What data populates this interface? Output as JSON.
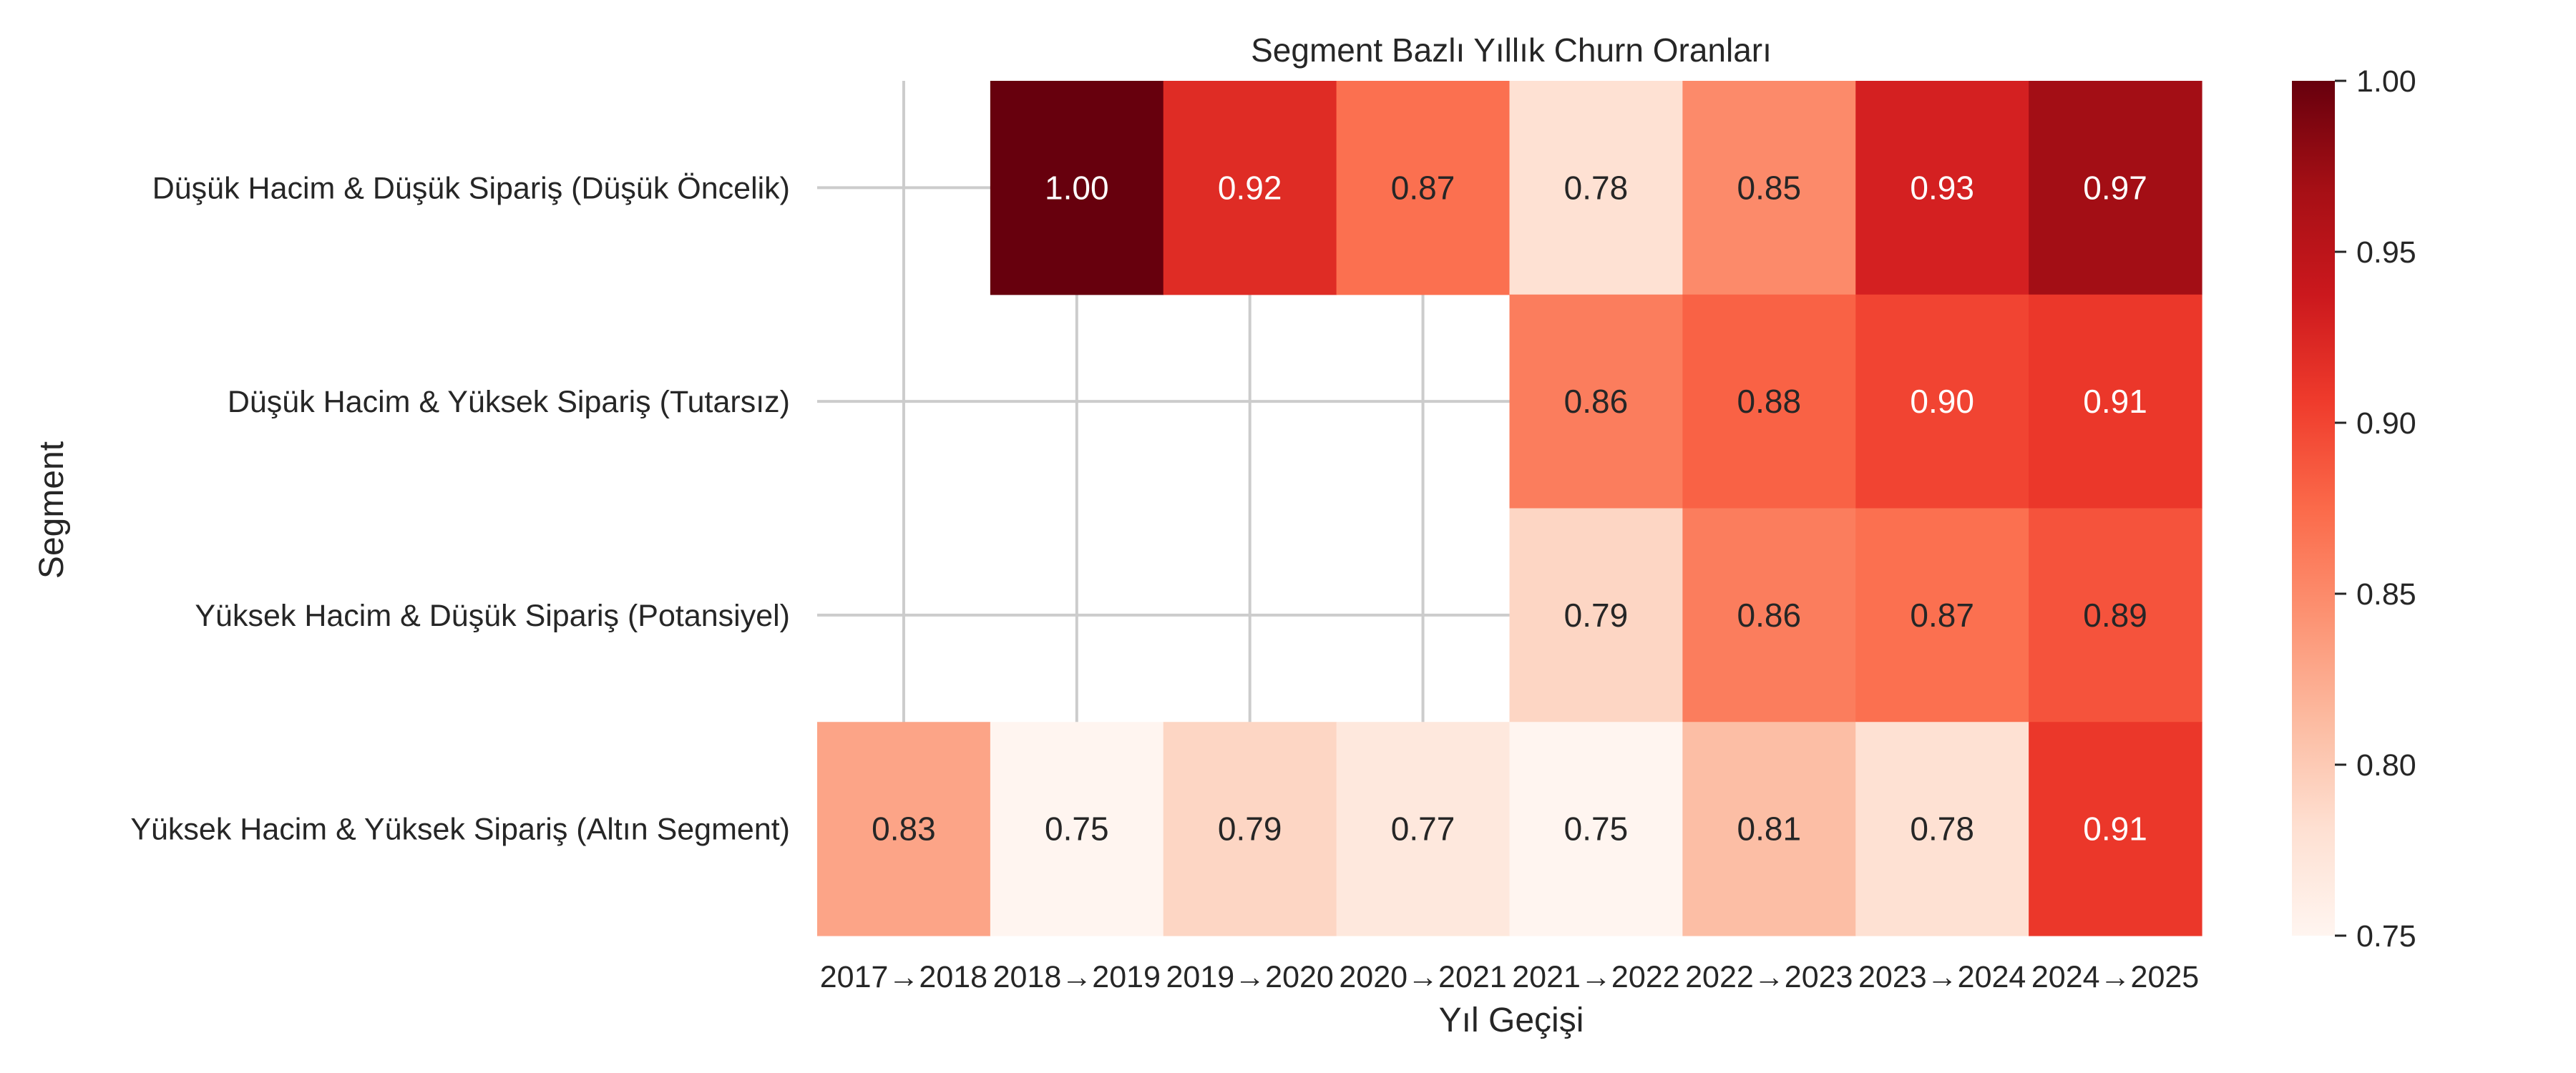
{
  "chart_data": {
    "type": "heatmap",
    "title": "Segment Bazlı Yıllık Churn Oranları",
    "xlabel": "Yıl Geçişi",
    "ylabel": "Segment",
    "x": [
      "2017→2018",
      "2018→2019",
      "2019→2020",
      "2020→2021",
      "2021→2022",
      "2022→2023",
      "2023→2024",
      "2024→2025"
    ],
    "y": [
      "Düşük Hacim & Düşük Sipariş (Düşük Öncelik)",
      "Düşük Hacim & Yüksek Sipariş (Tutarsız)",
      "Yüksek Hacim & Düşük Sipariş (Potansiyel)",
      "Yüksek Hacim & Yüksek Sipariş (Altın Segment)"
    ],
    "values": [
      [
        null,
        1.0,
        0.92,
        0.87,
        0.78,
        0.85,
        0.93,
        0.97
      ],
      [
        null,
        null,
        null,
        null,
        0.86,
        0.88,
        0.9,
        0.91
      ],
      [
        null,
        null,
        null,
        null,
        0.79,
        0.86,
        0.87,
        0.89
      ],
      [
        0.83,
        0.75,
        0.79,
        0.77,
        0.75,
        0.81,
        0.78,
        0.91
      ]
    ],
    "value_format": "0.00",
    "colorscale": "Reds",
    "colorbar": {
      "range": [
        0.75,
        1.0
      ],
      "ticks": [
        "0.75",
        "0.80",
        "0.85",
        "0.90",
        "0.95",
        "1.00"
      ]
    },
    "grid": true
  }
}
